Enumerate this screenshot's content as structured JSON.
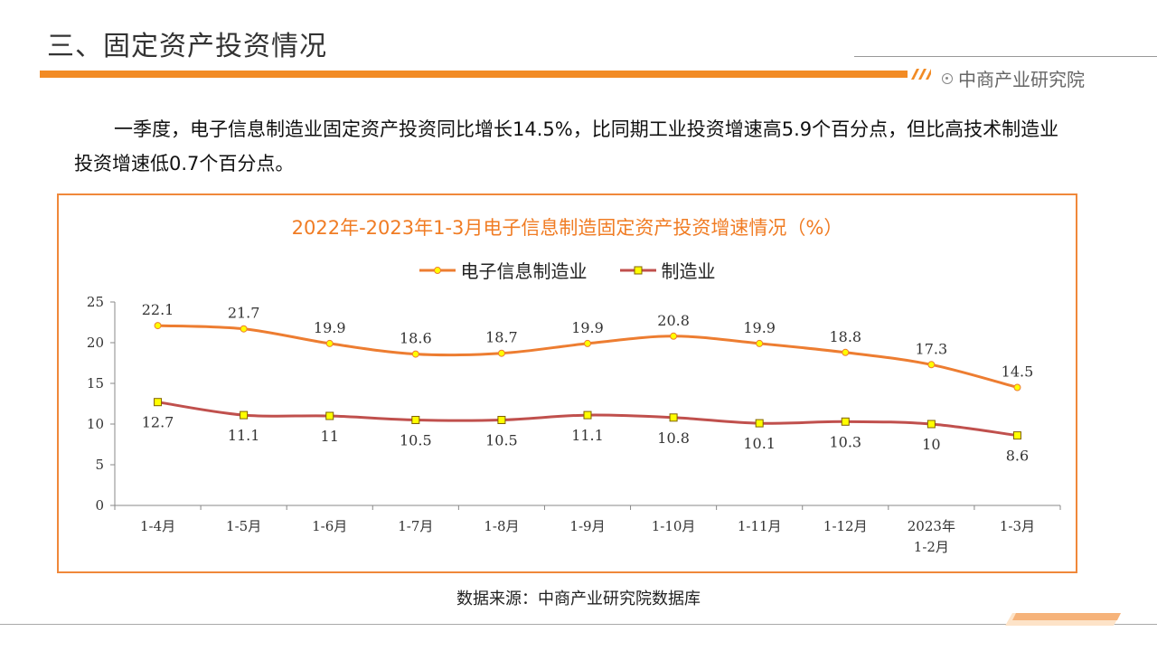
{
  "slide": {
    "title": "三、固定资产投资情况",
    "brand": "中商产业研究院",
    "intro": "一季度，电子信息制造业固定资产投资同比增长14.5%，比同期工业投资增速高5.9个百分点，但比高技术制造业投资增速低0.7个百分点。",
    "source": "数据来源：中商产业研究院数据库"
  },
  "colors": {
    "accent": "#f28b25",
    "series1": "#ed7d31",
    "series2": "#c0504d",
    "marker2_fill": "#ffff00"
  },
  "chart_data": {
    "type": "line",
    "title": "2022年-2023年1-3月电子信息制造固定资产投资增速情况（%）",
    "categories": [
      "1-4月",
      "1-5月",
      "1-6月",
      "1-7月",
      "1-8月",
      "1-9月",
      "1-10月",
      "1-11月",
      "1-12月",
      "2023年1-2月",
      "1-3月"
    ],
    "series": [
      {
        "name": "电子信息制造业",
        "values": [
          22.1,
          21.7,
          19.9,
          18.6,
          18.7,
          19.9,
          20.8,
          19.9,
          18.8,
          17.3,
          14.5
        ],
        "labels": [
          "22.1",
          "21.7",
          "19.9",
          "18.6",
          "18.7",
          "19.9",
          "20.8",
          "19.9",
          "18.8",
          "17.3",
          "14.5"
        ]
      },
      {
        "name": "制造业",
        "values": [
          12.7,
          11.1,
          11,
          10.5,
          10.5,
          11.1,
          10.8,
          10.1,
          10.3,
          10,
          8.6
        ],
        "labels": [
          "12.7",
          "11.1",
          "11",
          "10.5",
          "10.5",
          "11.1",
          "10.8",
          "10.1",
          "10.3",
          "10",
          "8.6"
        ]
      }
    ],
    "ylim": [
      0,
      25
    ],
    "yticks": [
      "0",
      "5",
      "10",
      "15",
      "20",
      "25"
    ],
    "xlabel": "",
    "ylabel": "",
    "legend_position": "top",
    "grid": false
  }
}
